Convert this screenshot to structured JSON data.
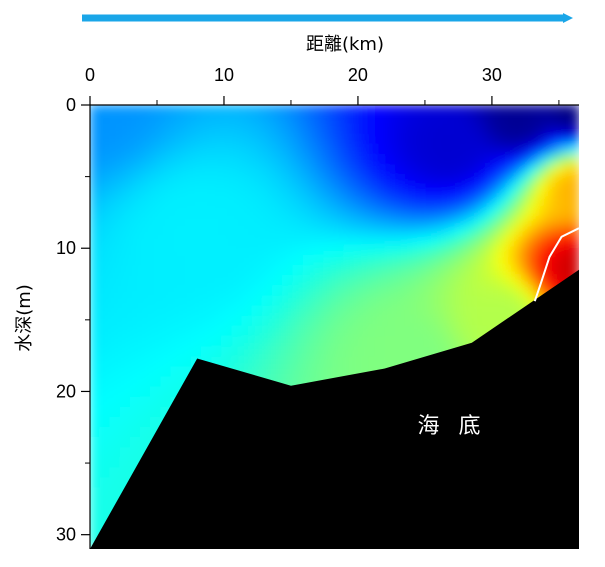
{
  "chart_data": {
    "type": "heatmap",
    "subtype": "vertical-section-contour",
    "xlabel": "距離(km)",
    "ylabel": "水深(m)",
    "xlim": [
      0,
      36.5
    ],
    "ylim": [
      0,
      31
    ],
    "x_axis_position": "top",
    "y_axis_inverted": true,
    "x_ticks": [
      0,
      10,
      20,
      30
    ],
    "x_minor_ticks": [
      5,
      15,
      25,
      35
    ],
    "y_ticks": [
      0,
      10,
      20,
      30
    ],
    "y_minor_ticks": [
      5,
      15,
      25
    ],
    "direction_arrow": true,
    "colormap": "jet",
    "seabed_label": "海 底",
    "seabed_color": "#000000",
    "contour_color": "#ffffff",
    "seabed_profile": [
      {
        "x": 0,
        "depth": 31
      },
      {
        "x": 8,
        "depth": 17.7
      },
      {
        "x": 15,
        "depth": 19.6
      },
      {
        "x": 22,
        "depth": 18.4
      },
      {
        "x": 28.5,
        "depth": 16.6
      },
      {
        "x": 36.5,
        "depth": 11.5
      }
    ],
    "highlight_contour": [
      {
        "x": 36.5,
        "depth": 8.6
      },
      {
        "x": 35.2,
        "depth": 9.2
      },
      {
        "x": 34.3,
        "depth": 10.6
      },
      {
        "x": 33.6,
        "depth": 12.6
      },
      {
        "x": 33.2,
        "depth": 13.7
      }
    ],
    "field_features": [
      {
        "x": 0,
        "depth": 0,
        "level": 0.27
      },
      {
        "x": 36.5,
        "depth": 31,
        "level": 0.28
      },
      {
        "x": 8,
        "depth": 9,
        "level": 0.36
      },
      {
        "x": 27,
        "depth": 3,
        "level": 0.08
      },
      {
        "x": 32,
        "depth": 1,
        "level": 0.02
      },
      {
        "x": 36.5,
        "depth": 0,
        "level": 0.0
      },
      {
        "x": 36.5,
        "depth": 11.5,
        "level": 0.92
      },
      {
        "x": 36.5,
        "depth": 6,
        "level": 0.7
      },
      {
        "x": 31,
        "depth": 15,
        "level": 0.55
      },
      {
        "x": 24,
        "depth": 17.8,
        "level": 0.5
      }
    ]
  }
}
